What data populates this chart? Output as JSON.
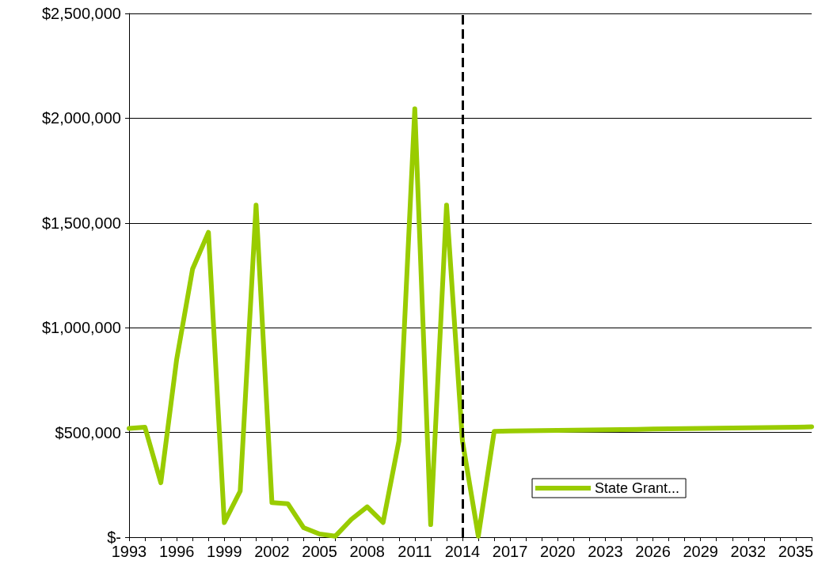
{
  "chart_data": {
    "type": "line",
    "categories": [
      "1993",
      null,
      null,
      "1996",
      null,
      null,
      "1999",
      null,
      null,
      "2002",
      null,
      null,
      "2005",
      null,
      null,
      "2008",
      null,
      null,
      "2011",
      null,
      null,
      "2014",
      null,
      null,
      "2017",
      null,
      null,
      "2020",
      null,
      null,
      "2023",
      null,
      null,
      "2026",
      null,
      null,
      "2029",
      null,
      null,
      "2032",
      null,
      null,
      "2035",
      null
    ],
    "series": [
      {
        "name": "State Grant...",
        "color": "#99cc00",
        "values": [
          519000,
          525000,
          260000,
          850000,
          1280000,
          1455000,
          70000,
          220000,
          1585000,
          165000,
          160000,
          45000,
          15000,
          5000,
          85000,
          145000,
          70000,
          460000,
          2045000,
          60000,
          1585000,
          460000,
          5000,
          505000,
          507000,
          508000,
          509000,
          510000,
          511000,
          512000,
          513000,
          514000,
          515000,
          516000,
          517000,
          518000,
          519000,
          520000,
          521000,
          522000,
          523000,
          524000,
          525000,
          527000
        ]
      }
    ],
    "ylim": [
      0,
      2500000
    ],
    "yticks": [
      {
        "value": 0,
        "label": "$-"
      },
      {
        "value": 500000,
        "label": "$500,000"
      },
      {
        "value": 1000000,
        "label": "$1,000,000"
      },
      {
        "value": 1500000,
        "label": "$1,500,000"
      },
      {
        "value": 2000000,
        "label": "$2,000,000"
      },
      {
        "value": 2500000,
        "label": "$2,500,000"
      }
    ],
    "grid": "y",
    "legend": "bottom right",
    "marker": "none",
    "line_style": "solid",
    "ref_lines": [
      {
        "axis": "x",
        "value": "2014",
        "color": "#000000",
        "line_style": "dashed"
      }
    ]
  }
}
